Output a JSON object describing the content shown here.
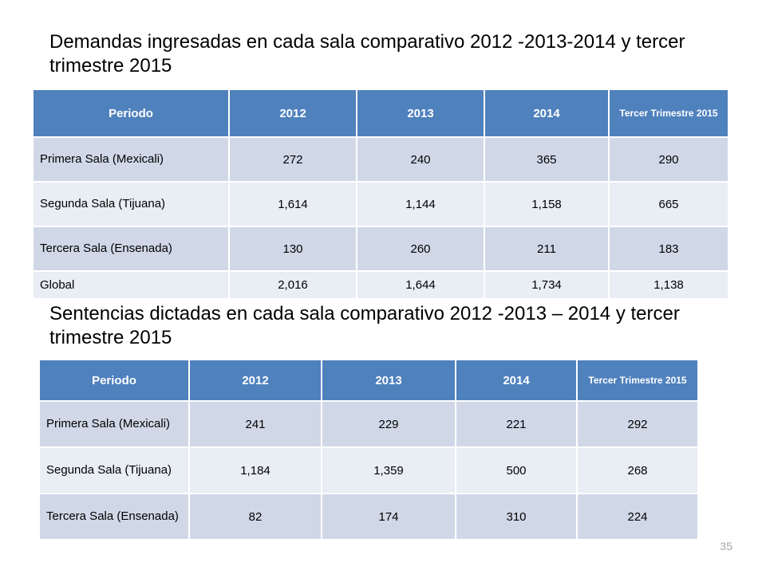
{
  "heading1": "Demandas ingresadas en cada sala comparativo 2012 -2013-2014 y tercer trimestre 2015",
  "heading2": "Sentencias dictadas en cada sala comparativo 2012 -2013 – 2014 y tercer trimestre 2015",
  "table1": {
    "headers": [
      "Periodo",
      "2012",
      "2013",
      "2014",
      "Tercer Trimestre 2015"
    ],
    "rows": [
      [
        "Primera Sala (Mexicali)",
        "272",
        "240",
        "365",
        "290"
      ],
      [
        "Segunda Sala (Tijuana)",
        "1,614",
        "1,144",
        "1,158",
        "665"
      ],
      [
        "Tercera Sala (Ensenada)",
        "130",
        "260",
        "211",
        "183"
      ],
      [
        "Global",
        "2,016",
        "1,644",
        "1,734",
        "1,138"
      ]
    ]
  },
  "table2": {
    "headers": [
      "Periodo",
      "2012",
      "2013",
      "2014",
      "Tercer Trimestre 2015"
    ],
    "rows": [
      [
        "Primera Sala (Mexicali)",
        "241",
        "229",
        "221",
        "292"
      ],
      [
        "Segunda Sala (Tijuana)",
        "1,184",
        "1,359",
        "500",
        "268"
      ],
      [
        "Tercera Sala (Ensenada)",
        "82",
        "174",
        "310",
        "224"
      ]
    ]
  },
  "colors": {
    "header": "#4f81bd",
    "row_odd": "#d0d8e8",
    "row_even": "#e9edf4"
  },
  "page_number": "35"
}
